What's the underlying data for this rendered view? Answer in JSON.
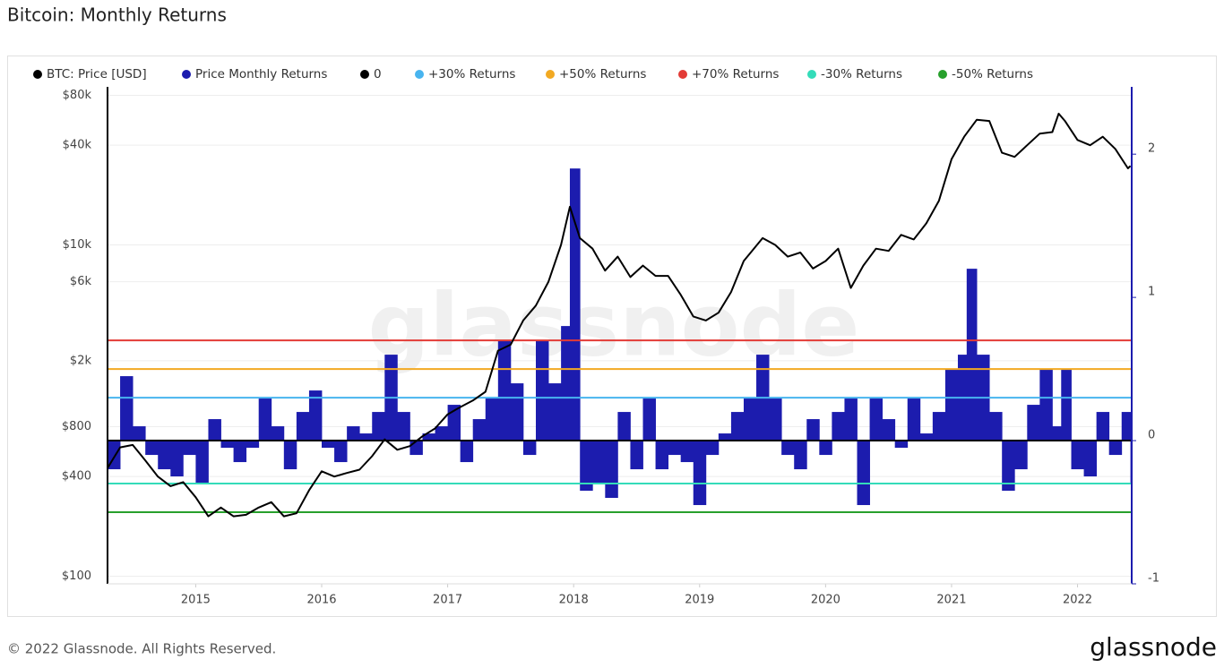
{
  "chart_data": {
    "type": "line",
    "title": "Bitcoin: Monthly Returns",
    "watermark": "glassnode",
    "footer": "© 2022 Glassnode. All Rights Reserved.",
    "brand": "glassnode",
    "log_y": true,
    "grid": true,
    "legend": "top",
    "xlim": [
      2014.3,
      2022.43
    ],
    "xticks": [
      2015,
      2016,
      2017,
      2018,
      2019,
      2020,
      2021,
      2022
    ],
    "ylim": [
      90,
      90000
    ],
    "yticks": [
      {
        "value": 100,
        "label": "$100"
      },
      {
        "value": 400,
        "label": "$400"
      },
      {
        "value": 800,
        "label": "$800"
      },
      {
        "value": 2000,
        "label": "$2k"
      },
      {
        "value": 6000,
        "label": "$6k"
      },
      {
        "value": 10000,
        "label": "$10k"
      },
      {
        "value": 40000,
        "label": "$40k"
      },
      {
        "value": 80000,
        "label": "$80k"
      }
    ],
    "y2lim": [
      -1,
      2.47
    ],
    "y2ticks": [
      -1,
      0,
      1,
      2
    ],
    "series": [
      {
        "name": "BTC: Price [USD]",
        "color": "#000000",
        "x": [
          2014.3,
          2014.4,
          2014.5,
          2014.6,
          2014.7,
          2014.8,
          2014.9,
          2015.0,
          2015.1,
          2015.2,
          2015.3,
          2015.4,
          2015.5,
          2015.6,
          2015.7,
          2015.8,
          2015.9,
          2016.0,
          2016.1,
          2016.2,
          2016.3,
          2016.4,
          2016.5,
          2016.6,
          2016.7,
          2016.8,
          2016.9,
          2017.0,
          2017.1,
          2017.2,
          2017.3,
          2017.4,
          2017.5,
          2017.6,
          2017.7,
          2017.8,
          2017.9,
          2017.97,
          2018.05,
          2018.15,
          2018.25,
          2018.35,
          2018.45,
          2018.55,
          2018.65,
          2018.75,
          2018.85,
          2018.95,
          2019.05,
          2019.15,
          2019.25,
          2019.35,
          2019.5,
          2019.6,
          2019.7,
          2019.8,
          2019.9,
          2020.0,
          2020.1,
          2020.2,
          2020.3,
          2020.4,
          2020.5,
          2020.6,
          2020.7,
          2020.8,
          2020.9,
          2021.0,
          2021.1,
          2021.2,
          2021.3,
          2021.4,
          2021.5,
          2021.6,
          2021.7,
          2021.8,
          2021.85,
          2021.9,
          2022.0,
          2022.1,
          2022.2,
          2022.3,
          2022.4,
          2022.42
        ],
        "values": [
          450,
          600,
          620,
          500,
          400,
          350,
          370,
          300,
          230,
          260,
          230,
          235,
          260,
          280,
          230,
          240,
          330,
          430,
          400,
          420,
          440,
          530,
          670,
          580,
          610,
          700,
          780,
          950,
          1050,
          1150,
          1300,
          2300,
          2500,
          3500,
          4300,
          6000,
          10000,
          17000,
          11000,
          9500,
          7000,
          8500,
          6400,
          7500,
          6500,
          6500,
          5000,
          3700,
          3500,
          3900,
          5200,
          8000,
          11000,
          10000,
          8500,
          9000,
          7200,
          8000,
          9500,
          5500,
          7500,
          9500,
          9200,
          11500,
          10800,
          13500,
          18500,
          33000,
          45000,
          57000,
          56000,
          36000,
          34000,
          40000,
          47000,
          48000,
          62000,
          56000,
          43000,
          40000,
          45000,
          38000,
          29000,
          30000
        ]
      },
      {
        "name": "Price Monthly Returns",
        "color": "#1c1cae",
        "axis": "y2",
        "x": [
          2014.3,
          2014.4,
          2014.5,
          2014.6,
          2014.7,
          2014.8,
          2014.9,
          2015.0,
          2015.1,
          2015.2,
          2015.3,
          2015.4,
          2015.5,
          2015.6,
          2015.7,
          2015.8,
          2015.9,
          2016.0,
          2016.1,
          2016.2,
          2016.3,
          2016.4,
          2016.5,
          2016.6,
          2016.7,
          2016.8,
          2016.9,
          2017.0,
          2017.1,
          2017.2,
          2017.3,
          2017.4,
          2017.5,
          2017.6,
          2017.7,
          2017.8,
          2017.9,
          2017.97,
          2018.05,
          2018.15,
          2018.25,
          2018.35,
          2018.45,
          2018.55,
          2018.65,
          2018.75,
          2018.85,
          2018.95,
          2019.05,
          2019.15,
          2019.25,
          2019.35,
          2019.45,
          2019.55,
          2019.65,
          2019.75,
          2019.85,
          2019.95,
          2020.05,
          2020.15,
          2020.25,
          2020.35,
          2020.45,
          2020.55,
          2020.65,
          2020.75,
          2020.85,
          2020.95,
          2021.05,
          2021.12,
          2021.2,
          2021.3,
          2021.4,
          2021.5,
          2021.6,
          2021.7,
          2021.8,
          2021.87,
          2021.95,
          2022.05,
          2022.15,
          2022.25,
          2022.35,
          2022.42
        ],
        "values": [
          -0.2,
          0.45,
          0.1,
          -0.1,
          -0.2,
          -0.25,
          -0.1,
          -0.3,
          0.15,
          -0.05,
          -0.15,
          -0.05,
          0.3,
          0.1,
          -0.2,
          0.2,
          0.35,
          -0.05,
          -0.15,
          0.1,
          0.05,
          0.2,
          0.6,
          0.2,
          -0.1,
          0.05,
          0.1,
          0.25,
          -0.15,
          0.15,
          0.3,
          0.7,
          0.4,
          -0.1,
          0.7,
          0.4,
          0.8,
          1.9,
          -0.35,
          -0.3,
          -0.4,
          0.2,
          -0.2,
          0.3,
          -0.2,
          -0.1,
          -0.15,
          -0.45,
          -0.1,
          0.05,
          0.2,
          0.3,
          0.6,
          0.3,
          -0.1,
          -0.2,
          0.15,
          -0.1,
          0.2,
          0.3,
          -0.45,
          0.3,
          0.15,
          -0.05,
          0.3,
          0.05,
          0.2,
          0.5,
          0.6,
          1.2,
          0.6,
          0.2,
          -0.35,
          -0.2,
          0.25,
          0.5,
          0.1,
          0.5,
          -0.2,
          -0.25,
          0.2,
          -0.1,
          0.2,
          -0.3
        ]
      }
    ],
    "reference_lines": [
      {
        "name": "0",
        "value": 0,
        "color": "#000000"
      },
      {
        "name": "+30% Returns",
        "value": 0.3,
        "color": "#48b4ef"
      },
      {
        "name": "+50% Returns",
        "value": 0.5,
        "color": "#f2a922"
      },
      {
        "name": "+70% Returns",
        "value": 0.7,
        "color": "#e33b36"
      },
      {
        "name": "-30% Returns",
        "value": -0.3,
        "color": "#34dcb9"
      },
      {
        "name": "-50% Returns",
        "value": -0.5,
        "color": "#27a02c"
      }
    ]
  }
}
